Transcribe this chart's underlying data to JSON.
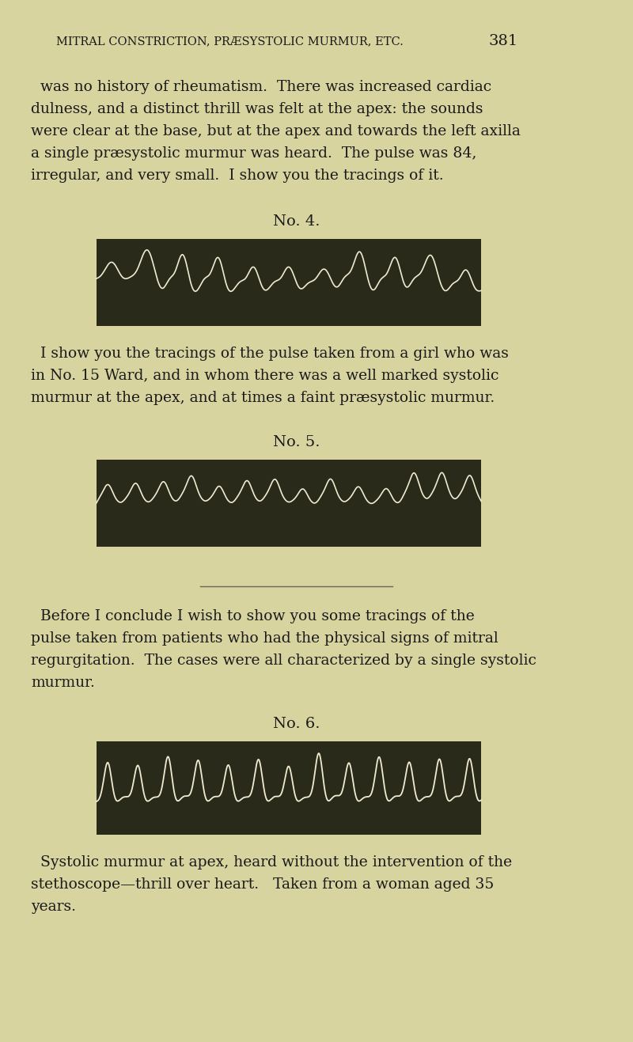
{
  "page_bg_color": "#d8d4a0",
  "text_color": "#1a1a1a",
  "header_text": "MITRAL CONSTRICTION, PRÆSYSTOLIC MURMUR, ETC.",
  "header_page_num": "381",
  "paragraph1": "was no history of rheumatism.  There was increased cardiac\ndulness, and a distinct thrill was felt at the apex: the sounds\nwere clear at the base, but at the apex and towards the left axilla\na single præsystolic murmur was heard.  The pulse was 84,\nirregular, and very small.  I show you the tracings of it.",
  "label1": "No. 4.",
  "label2": "No. 5.",
  "label3": "No. 6.",
  "paragraph2": "I show you the tracings of the pulse taken from a girl who was\nin No. 15 Ward, and in whom there was a well marked systolic\nmurmur at the apex, and at times a faint præsystolic murmur.",
  "paragraph3": "Before I conclude I wish to show you some tracings of the\npulse taken from patients who had the physical signs of mitral\nregurgitation.  The cases were all characterized by a single systolic\nmurmur.",
  "caption3": "Systolic murmur at apex, heard without the intervention of the\nstethoscope—thrill over heart.   Taken from a woman aged 35\nyears.",
  "tracing_bg": "#2a2a1a",
  "tracing_line_color": "#f0ead0",
  "divider_color": "#666655",
  "font_size_body": 13.5,
  "font_size_header": 10.5,
  "font_size_label": 14
}
